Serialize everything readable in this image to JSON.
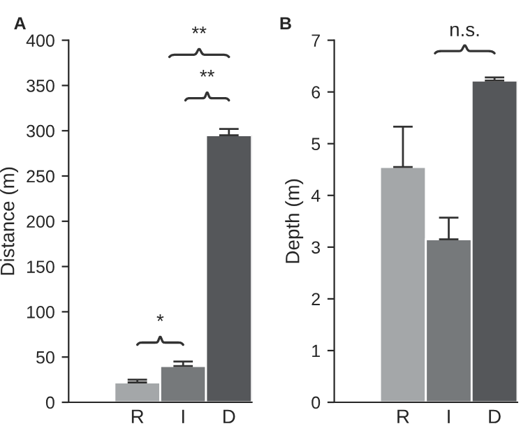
{
  "chart_data": [
    {
      "type": "bar",
      "title": "A",
      "ylabel": "Distance (m)",
      "categories": [
        null,
        "R",
        "I",
        "D"
      ],
      "values": [
        null,
        22,
        40,
        295
      ],
      "errors": [
        null,
        [
          22,
          25
        ],
        [
          40,
          45
        ],
        [
          295,
          302
        ]
      ],
      "colors": [
        "#a4a7a9",
        "#a4a7a9",
        "#76797b",
        "#55575a"
      ],
      "ylim": [
        0,
        400
      ],
      "yticks": [
        0,
        50,
        100,
        150,
        200,
        250,
        300,
        350,
        400
      ],
      "annotations": [
        "*",
        "**",
        "**"
      ],
      "grid": false,
      "legend": false
    },
    {
      "type": "bar",
      "title": "B",
      "ylabel": "Depth (m)",
      "categories": [
        null,
        "R",
        "I",
        "D"
      ],
      "values": [
        null,
        4.55,
        3.15,
        6.22
      ],
      "errors": [
        null,
        [
          4.55,
          5.33
        ],
        [
          3.15,
          3.57
        ],
        [
          6.22,
          6.28
        ]
      ],
      "colors": [
        "#a4a7a9",
        "#a4a7a9",
        "#76797b",
        "#55575a"
      ],
      "ylim": [
        0,
        7
      ],
      "yticks": [
        0,
        1,
        2,
        3,
        4,
        5,
        6,
        7
      ],
      "annotations": [
        "n.s."
      ],
      "grid": false,
      "legend": false
    }
  ]
}
